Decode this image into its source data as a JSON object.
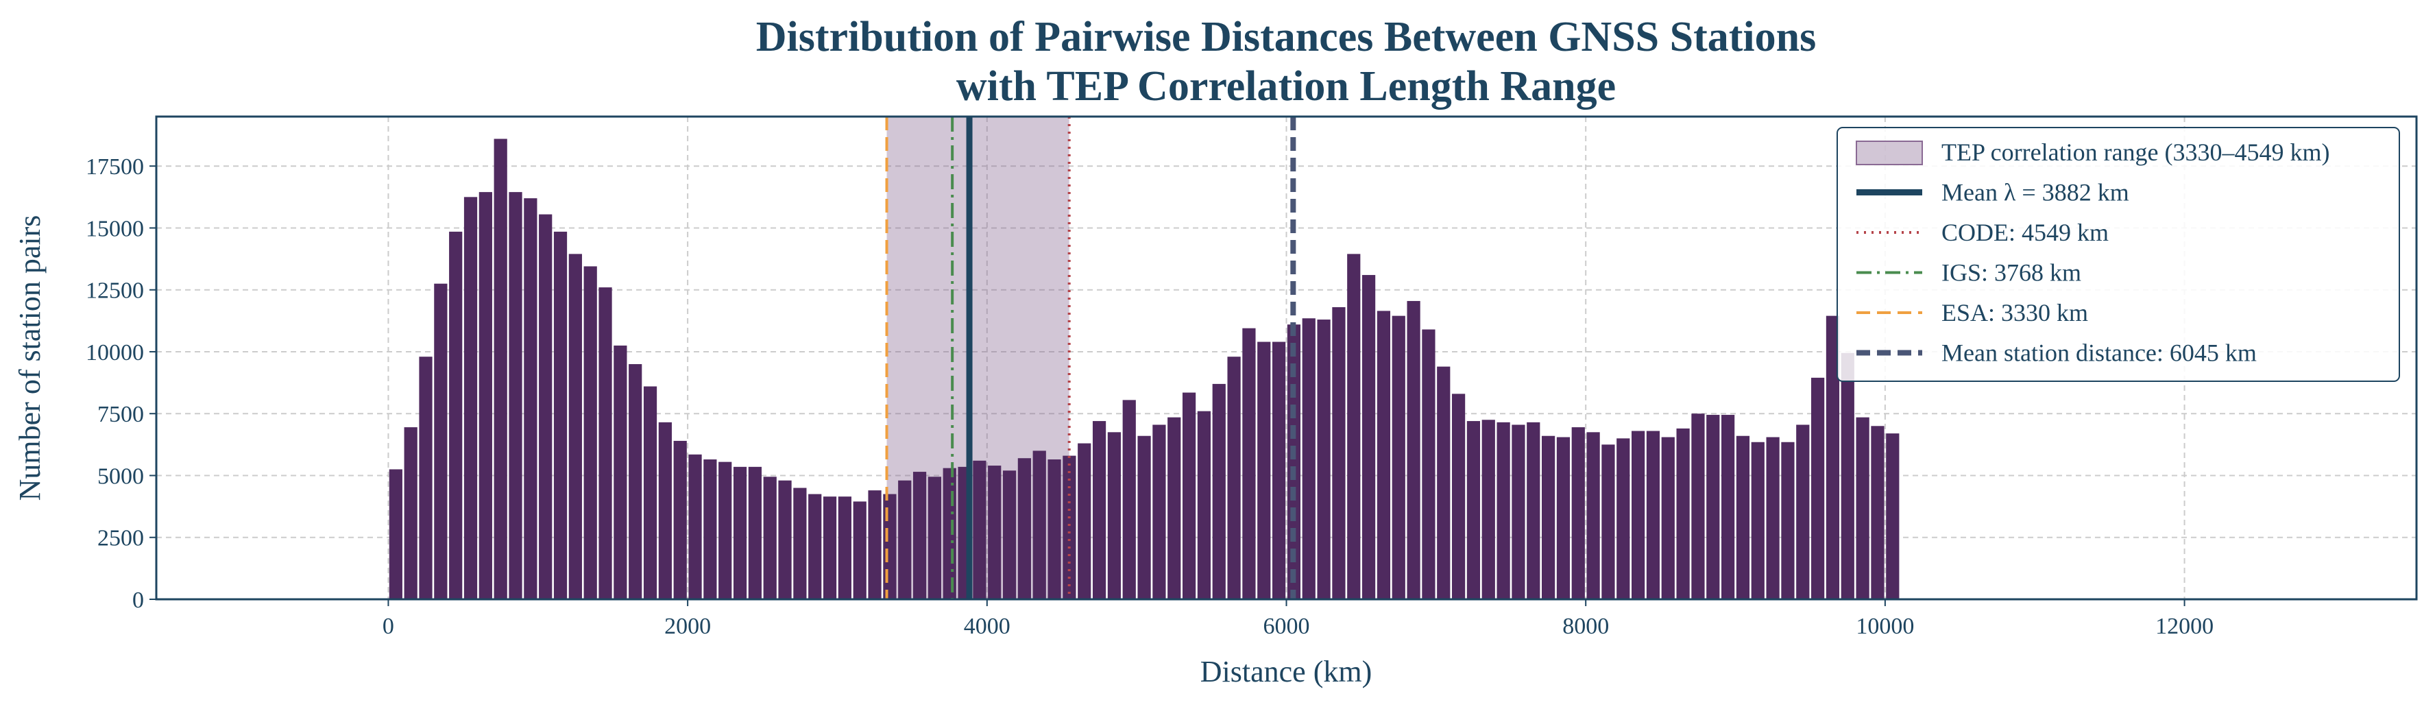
{
  "chart_data": {
    "type": "bar",
    "title_line1": "Distribution of Pairwise Distances Between GNSS Stations",
    "title_line2": "with TEP Correlation Length Range",
    "xlabel": "Distance (km)",
    "ylabel": "Number of station pairs",
    "xlim": [
      -1550,
      13550
    ],
    "ylim": [
      0,
      19500
    ],
    "x_ticks": [
      0,
      2000,
      4000,
      6000,
      8000,
      10000,
      12000
    ],
    "y_ticks": [
      0,
      2500,
      5000,
      7500,
      10000,
      12500,
      15000,
      17500
    ],
    "grid": true,
    "bin_width": 100,
    "bin_start": 0,
    "values": [
      5250,
      6950,
      9800,
      12750,
      14850,
      16250,
      16450,
      18600,
      16450,
      16200,
      15550,
      14850,
      13950,
      13450,
      12600,
      10250,
      9500,
      8600,
      7150,
      6400,
      5850,
      5650,
      5550,
      5350,
      5350,
      4950,
      4800,
      4500,
      4250,
      4150,
      4150,
      3950,
      4400,
      4250,
      4800,
      5150,
      4950,
      5300,
      5350,
      5600,
      5400,
      5200,
      5700,
      6000,
      5650,
      5800,
      6300,
      7200,
      6750,
      8050,
      6600,
      7050,
      7350,
      8350,
      7600,
      8700,
      9800,
      10950,
      10400,
      10400,
      11100,
      11350,
      11300,
      11800,
      13950,
      13100,
      11650,
      11450,
      12050,
      10900,
      9400,
      8300,
      7200,
      7250,
      7150,
      7050,
      7150,
      6600,
      6550,
      6950,
      6750,
      6250,
      6500,
      6800,
      6800,
      6550,
      6900,
      7500,
      7450,
      7450,
      6600,
      6350,
      6550,
      6350,
      7050,
      8950,
      11450,
      9950,
      7350,
      7000,
      6700
    ],
    "tep_range": [
      3330,
      4549
    ],
    "lines": [
      {
        "key": "mean_lambda",
        "x": 3882,
        "color": "#1e4560",
        "style": "solid",
        "width": 9
      },
      {
        "key": "code",
        "x": 4549,
        "color": "#b5444a",
        "style": "dotted",
        "width": 4
      },
      {
        "key": "igs",
        "x": 3768,
        "color": "#4a8c4f",
        "style": "dashdot",
        "width": 4
      },
      {
        "key": "esa",
        "x": 3330,
        "color": "#f0a040",
        "style": "dashed",
        "width": 4
      },
      {
        "key": "mean_distance",
        "x": 6045,
        "color": "#4a5676",
        "style": "dashed",
        "width": 8
      }
    ],
    "legend": {
      "position": "top-right",
      "entries": [
        "TEP correlation range (3330–4549 km)",
        "Mean λ = 3882 km",
        "CODE: 4549 km",
        "IGS: 3768 km",
        "ESA: 3330 km",
        "Mean station distance: 6045 km"
      ]
    },
    "colors": {
      "bar": "#4f2a5f",
      "tep_band": "#8a6a94",
      "axis": "#1e4560",
      "text": "#1e4560"
    }
  }
}
